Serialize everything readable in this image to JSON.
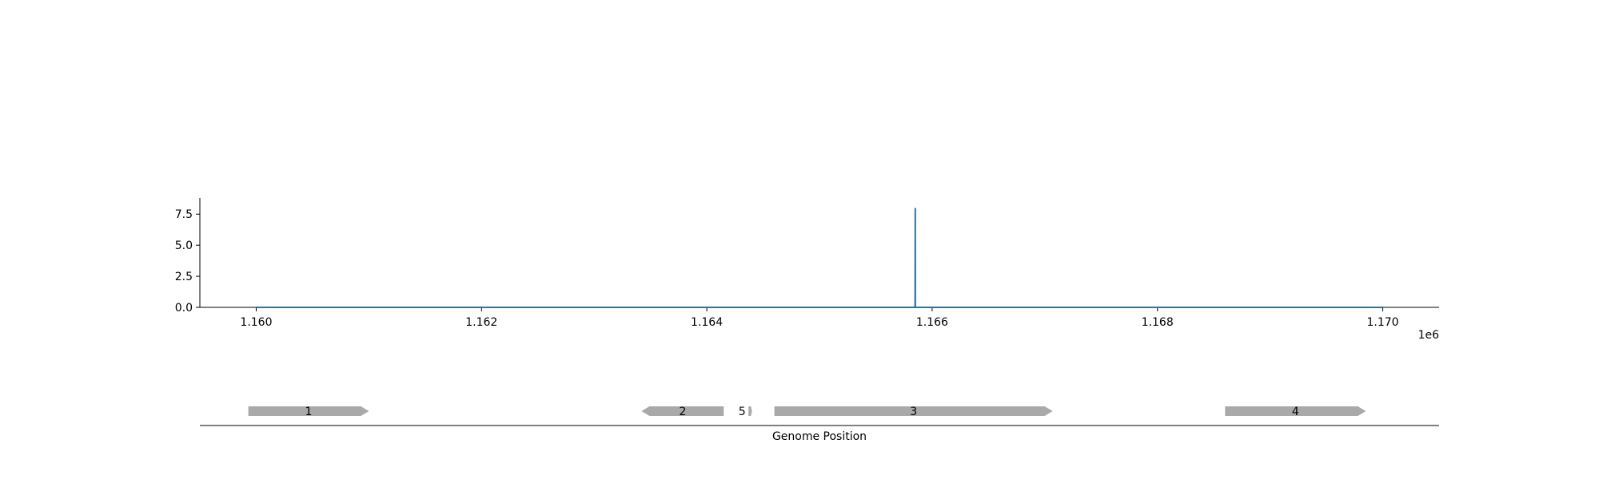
{
  "chart_data": {
    "type": "line",
    "title": "",
    "xlabel": "Genome Position",
    "ylabel": "",
    "x_offset_label": "1e6",
    "xlim": [
      1159500,
      1170500
    ],
    "ylim": [
      0,
      8.8
    ],
    "xticks": [
      1160000,
      1162000,
      1164000,
      1166000,
      1168000,
      1170000
    ],
    "xtick_labels": [
      "1.160",
      "1.162",
      "1.164",
      "1.166",
      "1.168",
      "1.170"
    ],
    "yticks": [
      0,
      2.5,
      5,
      7.5
    ],
    "ytick_labels": [
      "0.0",
      "2.5",
      "5.0",
      "7.5"
    ],
    "grid": false,
    "series": [
      {
        "color": "#1f77b4",
        "x": [
          1160000,
          1165849,
          1165850,
          1165851,
          1170000
        ],
        "y": [
          0,
          0,
          8,
          0,
          0
        ]
      }
    ],
    "genes": [
      {
        "label": "1",
        "start": 1159930,
        "end": 1161000,
        "strand": "+"
      },
      {
        "label": "2",
        "start": 1163420,
        "end": 1164150,
        "strand": "-"
      },
      {
        "label": "5",
        "start": 1164370,
        "end": 1164400,
        "strand": "+"
      },
      {
        "label": "3",
        "start": 1164600,
        "end": 1167070,
        "strand": "+"
      },
      {
        "label": "4",
        "start": 1168600,
        "end": 1169850,
        "strand": "+"
      }
    ],
    "gene_color": "#a9a9a9"
  }
}
